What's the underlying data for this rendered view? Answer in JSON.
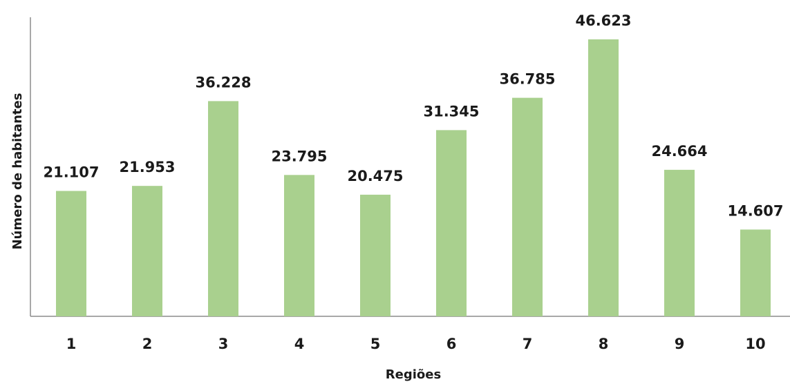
{
  "chart_data": {
    "type": "bar",
    "categories": [
      "1",
      "2",
      "3",
      "4",
      "5",
      "6",
      "7",
      "8",
      "9",
      "10"
    ],
    "values": [
      21107,
      21953,
      36228,
      23795,
      20475,
      31345,
      36785,
      46623,
      24664,
      14607
    ],
    "value_labels": [
      "21.107",
      "21.953",
      "36.228",
      "23.795",
      "20.475",
      "31.345",
      "36.785",
      "46.623",
      "24.664",
      "14.607"
    ],
    "xlabel": "Regiões",
    "ylabel": "Número de habitantes",
    "ylim": [
      0,
      50000
    ],
    "grid": false,
    "legend": "none",
    "bar_color": "#A9D08E"
  }
}
